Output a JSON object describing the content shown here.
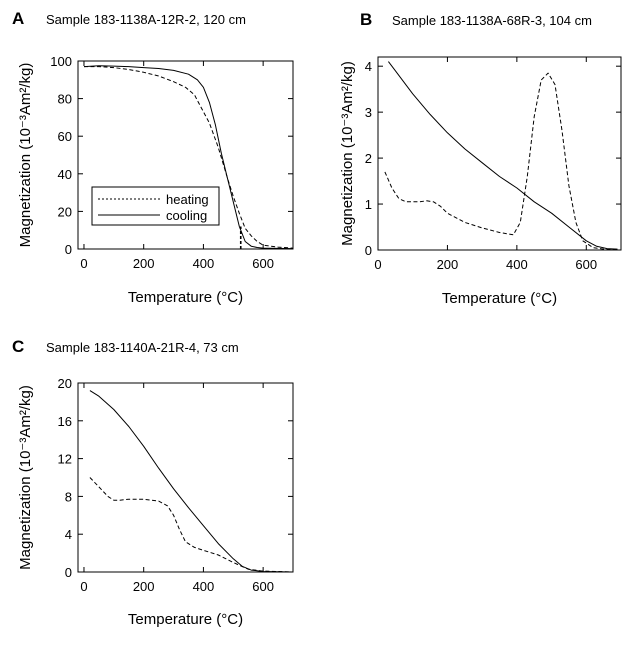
{
  "chart_data": [
    {
      "id": "A",
      "type": "line",
      "panel_label": "A",
      "title": "Sample 183-1138A-12R-2, 120 cm",
      "xlabel": "Temperature (°C)",
      "ylabel": "Magnetization (10⁻³Am²/kg)",
      "xlim": [
        -20,
        700
      ],
      "ylim": [
        0,
        100
      ],
      "xticks": [
        0,
        200,
        400,
        600
      ],
      "yticks": [
        0,
        20,
        40,
        60,
        80,
        100
      ],
      "grid": false,
      "legend_position": "lower-left",
      "series": [
        {
          "name": "heating",
          "style": "dashed",
          "x": [
            0,
            50,
            100,
            150,
            200,
            250,
            300,
            340,
            370,
            380,
            390,
            420,
            450,
            480,
            500,
            520,
            540,
            560,
            580,
            600,
            650,
            700
          ],
          "y": [
            97,
            97,
            96.5,
            95.5,
            94,
            92,
            89,
            86,
            82,
            79,
            76,
            67,
            54,
            38,
            28,
            19,
            11,
            7,
            4,
            2,
            1,
            0.5
          ]
        },
        {
          "name": "cooling",
          "style": "solid",
          "x": [
            0,
            50,
            100,
            150,
            200,
            250,
            300,
            350,
            380,
            400,
            420,
            440,
            460,
            480,
            500,
            520,
            540,
            560,
            580,
            600,
            650,
            700
          ],
          "y": [
            97,
            97.5,
            97.3,
            97,
            96.5,
            96,
            95,
            93,
            90,
            86,
            78,
            66,
            51,
            38,
            25,
            12,
            4,
            1.5,
            0.8,
            0.5,
            0.3,
            0.2
          ]
        }
      ],
      "annotations": [
        {
          "type": "vertical-dashed-line",
          "x": 525,
          "y_from": 0,
          "y_to": 12
        }
      ]
    },
    {
      "id": "B",
      "type": "line",
      "panel_label": "B",
      "title": "Sample 183-1138A-68R-3, 104 cm",
      "xlabel": "Temperature (°C)",
      "ylabel": "Magnetization (10⁻³Am²/kg)",
      "xlim": [
        0,
        700
      ],
      "ylim": [
        0,
        4.2
      ],
      "xticks": [
        0,
        200,
        400,
        600
      ],
      "yticks": [
        0,
        1,
        2,
        3,
        4
      ],
      "grid": false,
      "series": [
        {
          "name": "heating",
          "style": "dashed",
          "x": [
            20,
            40,
            60,
            80,
            100,
            120,
            140,
            160,
            180,
            200,
            250,
            300,
            350,
            390,
            410,
            430,
            450,
            470,
            490,
            510,
            530,
            550,
            570,
            590,
            620,
            650,
            690
          ],
          "y": [
            1.7,
            1.35,
            1.12,
            1.05,
            1.05,
            1.05,
            1.07,
            1.05,
            0.95,
            0.8,
            0.6,
            0.48,
            0.38,
            0.33,
            0.6,
            1.6,
            2.9,
            3.7,
            3.85,
            3.6,
            2.6,
            1.4,
            0.6,
            0.2,
            0.05,
            0.02,
            0.01
          ]
        },
        {
          "name": "cooling",
          "style": "solid",
          "x": [
            30,
            50,
            100,
            150,
            200,
            250,
            300,
            350,
            400,
            450,
            500,
            550,
            600,
            630,
            660,
            690
          ],
          "y": [
            4.1,
            3.9,
            3.4,
            2.95,
            2.55,
            2.2,
            1.9,
            1.6,
            1.35,
            1.05,
            0.8,
            0.5,
            0.2,
            0.08,
            0.03,
            0.02
          ]
        }
      ]
    },
    {
      "id": "C",
      "type": "line",
      "panel_label": "C",
      "title": "Sample 183-1140A-21R-4, 73 cm",
      "xlabel": "Temperature (°C)",
      "ylabel": "Magnetization (10⁻³Am²/kg)",
      "xlim": [
        -20,
        700
      ],
      "ylim": [
        0,
        20
      ],
      "xticks": [
        0,
        200,
        400,
        600
      ],
      "yticks": [
        0,
        4,
        8,
        12,
        16,
        20
      ],
      "grid": false,
      "series": [
        {
          "name": "heating",
          "style": "dashed",
          "x": [
            20,
            50,
            80,
            100,
            120,
            150,
            200,
            250,
            280,
            300,
            320,
            340,
            370,
            400,
            450,
            500,
            550,
            600,
            650,
            700
          ],
          "y": [
            10,
            9,
            8,
            7.6,
            7.6,
            7.7,
            7.7,
            7.5,
            7,
            6,
            4.5,
            3.2,
            2.6,
            2.3,
            1.8,
            1.0,
            0.3,
            0.1,
            0.05,
            0
          ]
        },
        {
          "name": "cooling",
          "style": "solid",
          "x": [
            20,
            50,
            100,
            150,
            200,
            250,
            300,
            350,
            400,
            450,
            500,
            530,
            560,
            600,
            650,
            700
          ],
          "y": [
            19.2,
            18.6,
            17.2,
            15.4,
            13.3,
            11.0,
            8.8,
            6.8,
            4.9,
            3.0,
            1.4,
            0.6,
            0.2,
            0.05,
            0.02,
            0
          ]
        }
      ]
    }
  ]
}
